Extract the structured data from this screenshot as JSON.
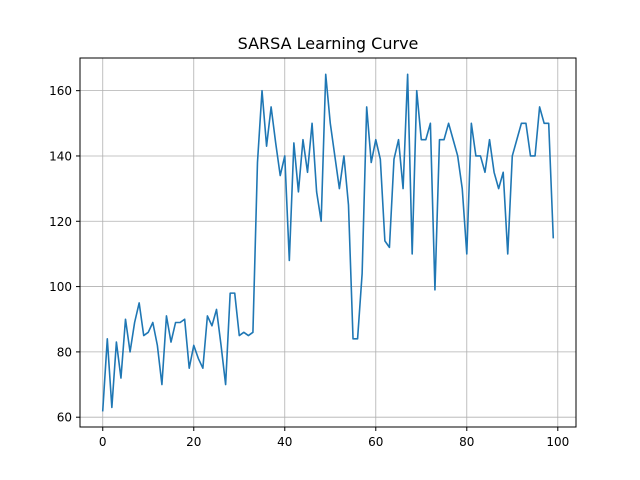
{
  "chart_data": {
    "type": "line",
    "title": "SARSA Learning Curve",
    "xlabel": "",
    "ylabel": "",
    "xlim": [
      -5,
      104
    ],
    "ylim": [
      57,
      170
    ],
    "xticks": [
      0,
      20,
      40,
      60,
      80,
      100
    ],
    "yticks": [
      60,
      80,
      100,
      120,
      140,
      160
    ],
    "grid": true,
    "legend": "none",
    "colors": {
      "series": "#1f77b4",
      "grid": "#b0b0b0"
    },
    "series": [
      {
        "x": [
          0,
          1,
          2,
          3,
          4,
          5,
          6,
          7,
          8,
          9,
          10,
          11,
          12,
          13,
          14,
          15,
          16,
          17,
          18,
          19,
          20,
          21,
          22,
          23,
          24,
          25,
          26,
          27,
          28,
          29,
          30,
          31,
          32,
          33,
          34,
          35,
          36,
          37,
          38,
          39,
          40,
          41,
          42,
          43,
          44,
          45,
          46,
          47,
          48,
          49,
          50,
          51,
          52,
          53,
          54,
          55,
          56,
          57,
          58,
          59,
          60,
          61,
          62,
          63,
          64,
          65,
          66,
          67,
          68,
          69,
          70,
          71,
          72,
          73,
          74,
          75,
          76,
          77,
          78,
          79,
          80,
          81,
          82,
          83,
          84,
          85,
          86,
          87,
          88,
          89,
          90,
          91,
          92,
          93,
          94,
          95,
          96,
          97,
          98,
          99
        ],
        "values": [
          62,
          84,
          63,
          83,
          72,
          90,
          80,
          89,
          95,
          85,
          86,
          89,
          82,
          70,
          91,
          83,
          89,
          89,
          90,
          75,
          82,
          78,
          75,
          91,
          88,
          93,
          82,
          70,
          98,
          98,
          85,
          86,
          85,
          86,
          138,
          160,
          143,
          155,
          144,
          134,
          140,
          108,
          144,
          129,
          145,
          135,
          150,
          129,
          120,
          165,
          150,
          140,
          130,
          140,
          125,
          84,
          84,
          104,
          155,
          138,
          145,
          139,
          114,
          112,
          139,
          145,
          130,
          165,
          110,
          160,
          145,
          145,
          150,
          99,
          145,
          145,
          150,
          145,
          140,
          130,
          110,
          150,
          140,
          140,
          135,
          145,
          135,
          130,
          135,
          110,
          140,
          145,
          150,
          150,
          140,
          140,
          155,
          150,
          150,
          115
        ]
      }
    ]
  }
}
